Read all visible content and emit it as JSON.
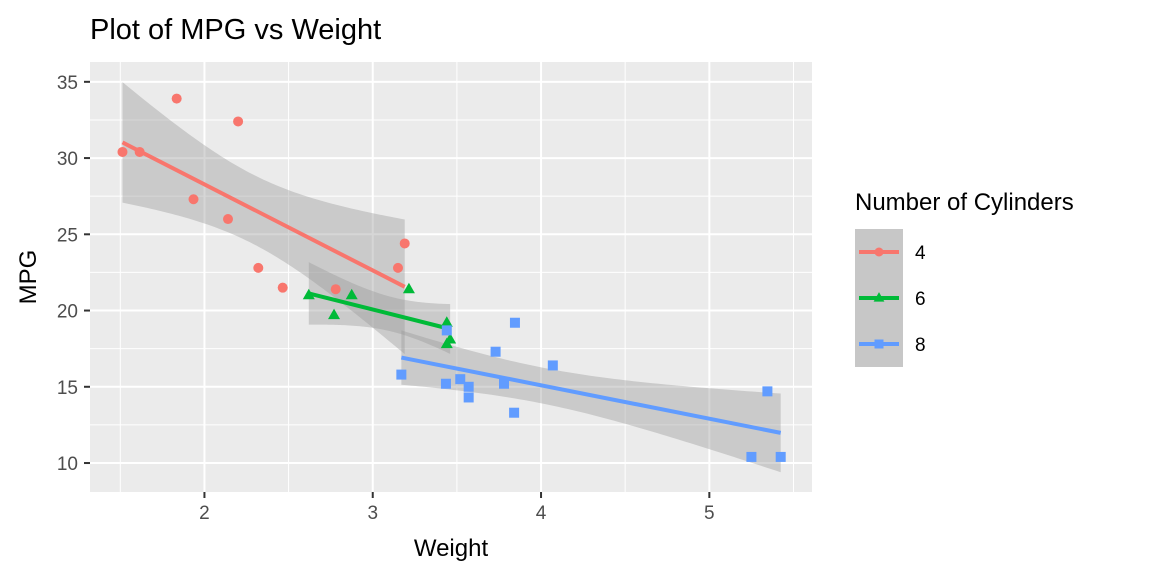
{
  "chart_data": {
    "type": "scatter",
    "title": "Plot of MPG vs Weight",
    "xlabel": "Weight",
    "ylabel": "MPG",
    "xlim": [
      1.32,
      5.61
    ],
    "ylim": [
      8.1,
      36.3
    ],
    "xticks": [
      2,
      3,
      4,
      5
    ],
    "yticks": [
      10,
      15,
      20,
      25,
      30,
      35
    ],
    "grid": true,
    "legend": {
      "title": "Number of Cylinders",
      "placement": "right"
    },
    "smooth": "linear regression with 95% confidence band",
    "series": [
      {
        "name": "4",
        "color": "#F8766D",
        "marker": "circle",
        "x": [
          2.32,
          3.19,
          3.15,
          2.2,
          1.615,
          1.835,
          2.465,
          1.935,
          2.14,
          1.513,
          2.78
        ],
        "y": [
          22.8,
          24.4,
          22.8,
          32.4,
          30.4,
          33.9,
          21.5,
          27.3,
          26.0,
          30.4,
          21.4
        ]
      },
      {
        "name": "6",
        "color": "#00BA38",
        "marker": "triangle",
        "x": [
          2.62,
          2.875,
          3.215,
          3.46,
          3.44,
          3.44,
          2.77
        ],
        "y": [
          21.0,
          21.0,
          21.4,
          18.1,
          19.2,
          17.8,
          19.7
        ]
      },
      {
        "name": "8",
        "color": "#619CFF",
        "marker": "square",
        "x": [
          3.44,
          3.57,
          4.07,
          3.73,
          3.78,
          5.25,
          5.424,
          5.345,
          3.52,
          3.435,
          3.84,
          3.845,
          3.17,
          3.57
        ],
        "y": [
          18.7,
          14.3,
          16.4,
          17.3,
          15.2,
          10.4,
          10.4,
          14.7,
          15.5,
          15.2,
          13.3,
          19.2,
          15.8,
          15.0
        ]
      }
    ]
  }
}
